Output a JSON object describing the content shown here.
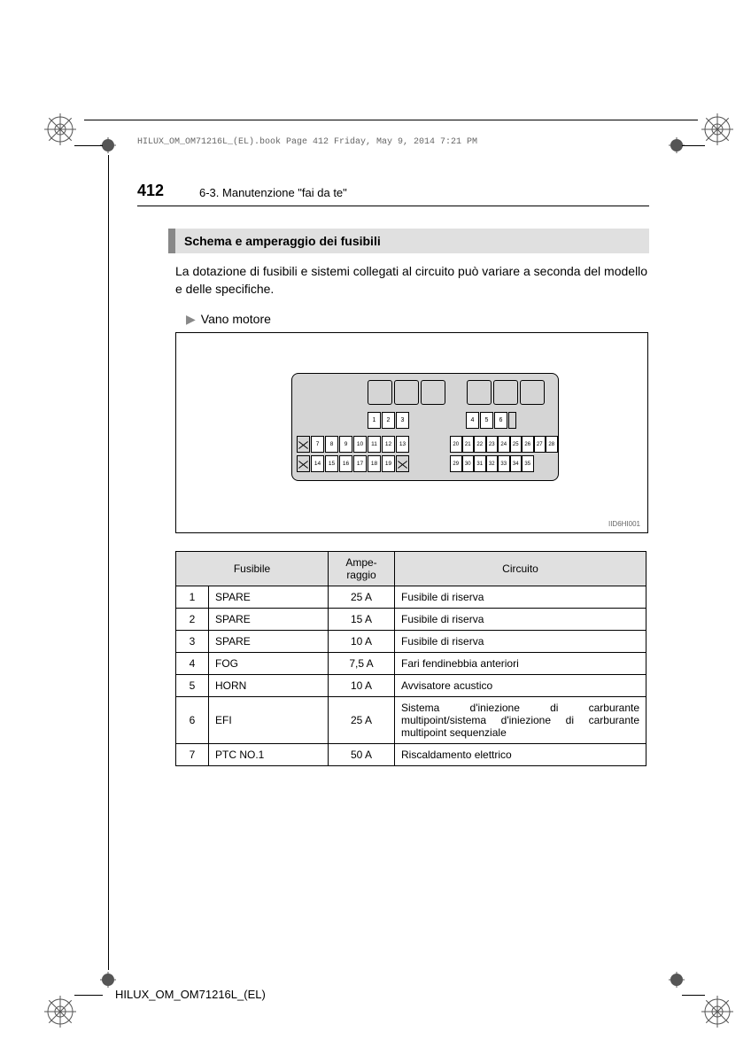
{
  "header": {
    "file_info": "HILUX_OM_OM71216L_(EL).book  Page 412  Friday, May 9, 2014  7:21 PM",
    "page_number": "412",
    "section": "6-3. Manutenzione \"fai da te\""
  },
  "heading": "Schema e amperaggio dei fusibili",
  "intro": "La dotazione di fusibili e sistemi collegati al circuito può variare a seconda del modello e delle specifiche.",
  "sub_heading": "Vano motore",
  "diagram": {
    "label": "IID6HI001",
    "mid_row_left": [
      "1",
      "2",
      "3"
    ],
    "mid_row_right": [
      "4",
      "5",
      "6"
    ],
    "bot1_left": [
      "7",
      "8",
      "9",
      "10",
      "11",
      "12",
      "13"
    ],
    "bot1_right": [
      "20",
      "21",
      "22",
      "23",
      "24",
      "25",
      "26",
      "27",
      "28"
    ],
    "bot2_left": [
      "14",
      "15",
      "16",
      "17",
      "18",
      "19"
    ],
    "bot2_right": [
      "29",
      "30",
      "31",
      "32",
      "33",
      "34",
      "35"
    ]
  },
  "table": {
    "headers": {
      "fuse": "Fusibile",
      "amp": "Ampe-raggio",
      "circuit": "Circuito"
    },
    "rows": [
      {
        "n": "1",
        "name": "SPARE",
        "amp": "25 A",
        "circuit": "Fusibile di riserva"
      },
      {
        "n": "2",
        "name": "SPARE",
        "amp": "15 A",
        "circuit": "Fusibile di riserva"
      },
      {
        "n": "3",
        "name": "SPARE",
        "amp": "10 A",
        "circuit": "Fusibile di riserva"
      },
      {
        "n": "4",
        "name": "FOG",
        "amp": "7,5 A",
        "circuit": "Fari fendinebbia anteriori"
      },
      {
        "n": "5",
        "name": "HORN",
        "amp": "10 A",
        "circuit": "Avvisatore acustico"
      },
      {
        "n": "6",
        "name": "EFI",
        "amp": "25 A",
        "circuit": "Sistema d'iniezione di carburante multipoint/sistema d'iniezione di carburante multipoint sequenziale"
      },
      {
        "n": "7",
        "name": "PTC NO.1",
        "amp": "50 A",
        "circuit": "Riscaldamento elettrico"
      }
    ]
  },
  "footer": "HILUX_OM_OM71216L_(EL)"
}
